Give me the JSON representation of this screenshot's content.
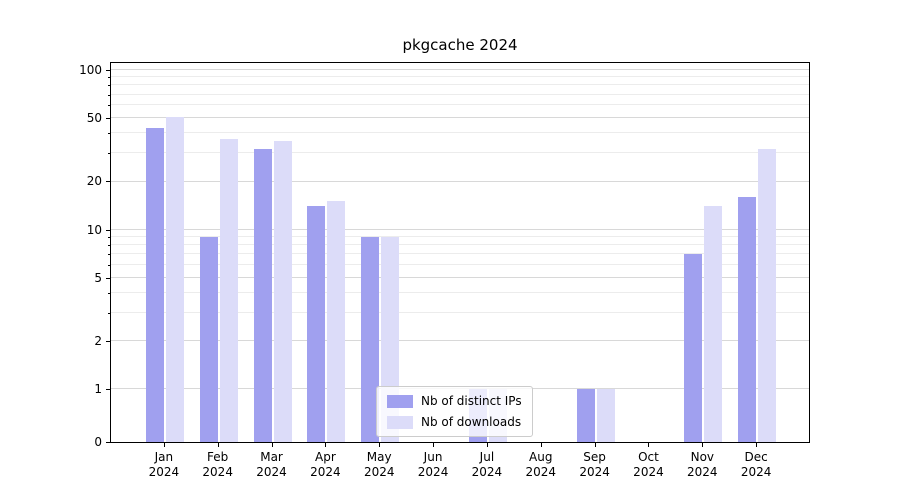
{
  "chart_data": {
    "type": "bar",
    "title": "pkgcache 2024",
    "categories": [
      "Jan",
      "Feb",
      "Mar",
      "Apr",
      "May",
      "Jun",
      "Jul",
      "Aug",
      "Sep",
      "Oct",
      "Nov",
      "Dec"
    ],
    "year_label": "2024",
    "series": [
      {
        "name": "Nb of distinct IPs",
        "color": "#a0a0ef",
        "values": [
          43,
          9,
          32,
          14,
          9,
          0,
          1,
          0,
          1,
          0,
          7,
          16
        ]
      },
      {
        "name": "Nb of downloads",
        "color": "#dcdcf9",
        "values": [
          51,
          37,
          36,
          15,
          9,
          0,
          1,
          0,
          1,
          0,
          14,
          32
        ]
      }
    ],
    "yscale": "symlog",
    "ylim": [
      0,
      100
    ],
    "yticks": [
      0,
      1,
      2,
      5,
      10,
      20,
      50,
      100
    ],
    "minor_yticks": [
      3,
      4,
      6,
      7,
      8,
      9,
      30,
      40,
      60,
      70,
      80,
      90
    ],
    "xlabel": "",
    "ylabel": "",
    "grid": "horizontal-major-and-minor",
    "legend_position": "lower-center"
  }
}
